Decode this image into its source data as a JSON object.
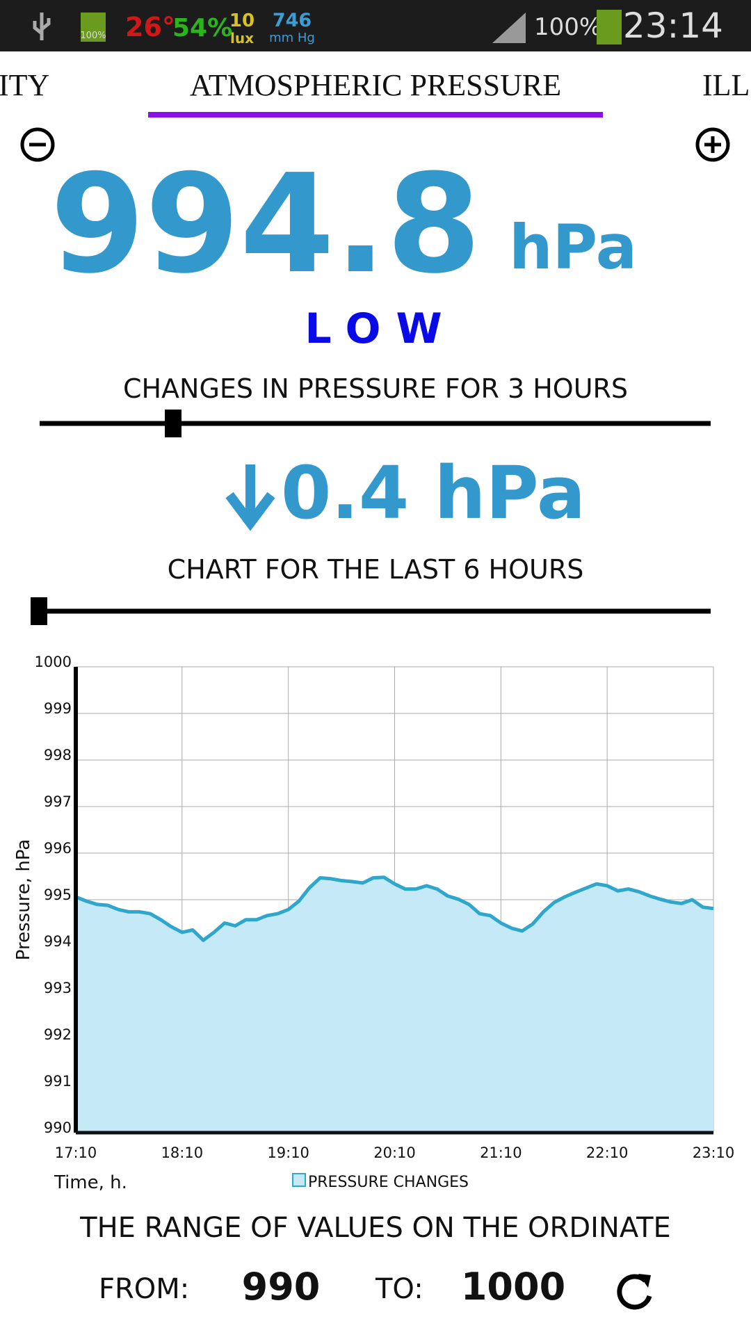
{
  "status_bar": {
    "battery_icon_label": "100%",
    "temperature": "26°",
    "humidity": "54%",
    "illuminance": "10",
    "illuminance_unit": "lux",
    "pressure": "746",
    "pressure_unit": "mm Hg",
    "signal": "100%",
    "time": "23:14"
  },
  "tabs": [
    "ITY",
    "ATMOSPHERIC PRESSURE",
    "ILL"
  ],
  "reading": {
    "value": "994.8",
    "unit": "hPa",
    "status": "LOW"
  },
  "changes": {
    "title": "CHANGES IN PRESSURE FOR 3 HOURS",
    "delta": "0.4 hPa"
  },
  "chart_title": "CHART FOR THE LAST 6 HOURS",
  "chart_data": {
    "type": "line",
    "ylabel": "Pressure, hPa",
    "xlabel": "Time, h.",
    "grid": true,
    "x": [
      "17:10",
      "17:16",
      "17:22",
      "17:28",
      "17:34",
      "17:40",
      "17:46",
      "17:52",
      "17:58",
      "18:04",
      "18:10",
      "18:16",
      "18:22",
      "18:28",
      "18:34",
      "18:40",
      "18:46",
      "18:52",
      "18:58",
      "19:04",
      "19:10",
      "19:16",
      "19:22",
      "19:28",
      "19:34",
      "19:40",
      "19:46",
      "19:52",
      "19:58",
      "20:04",
      "20:10",
      "20:16",
      "20:22",
      "20:28",
      "20:34",
      "20:40",
      "20:46",
      "20:52",
      "20:58",
      "21:04",
      "21:10",
      "21:16",
      "21:22",
      "21:28",
      "21:34",
      "21:40",
      "21:46",
      "21:52",
      "21:58",
      "22:04",
      "22:10",
      "22:16",
      "22:22",
      "22:28",
      "22:34",
      "22:40",
      "22:46",
      "22:52",
      "22:58",
      "23:04",
      "23:10"
    ],
    "series": [
      {
        "name": "PRESSURE CHANGES",
        "color": "#2fa6cc",
        "fill": "#c5e9f7",
        "values": [
          995.06,
          994.97,
          994.9,
          994.88,
          994.79,
          994.74,
          994.74,
          994.7,
          994.57,
          994.42,
          994.3,
          994.35,
          994.13,
          994.3,
          994.5,
          994.44,
          994.57,
          994.57,
          994.66,
          994.7,
          994.79,
          994.97,
          995.26,
          995.47,
          995.45,
          995.41,
          995.39,
          995.36,
          995.47,
          995.48,
          995.34,
          995.23,
          995.23,
          995.3,
          995.23,
          995.08,
          995.01,
          994.9,
          994.7,
          994.66,
          994.5,
          994.39,
          994.33,
          994.48,
          994.74,
          994.94,
          995.06,
          995.16,
          995.25,
          995.34,
          995.3,
          995.19,
          995.23,
          995.17,
          995.08,
          995.01,
          994.95,
          994.92,
          995.0,
          994.84,
          994.81
        ]
      }
    ],
    "xlim": [
      "17:10",
      "23:10"
    ],
    "xticks": [
      "17:10",
      "18:10",
      "19:10",
      "20:10",
      "21:10",
      "22:10",
      "23:10"
    ],
    "ylim": [
      990,
      1000
    ],
    "yticks": [
      990,
      991,
      992,
      993,
      994,
      995,
      996,
      997,
      998,
      999,
      1000
    ]
  },
  "range": {
    "title": "THE RANGE OF VALUES ON THE ORDINATE",
    "from_label": "FROM:",
    "from_value": "990",
    "to_label": "TO:",
    "to_value": "1000"
  }
}
